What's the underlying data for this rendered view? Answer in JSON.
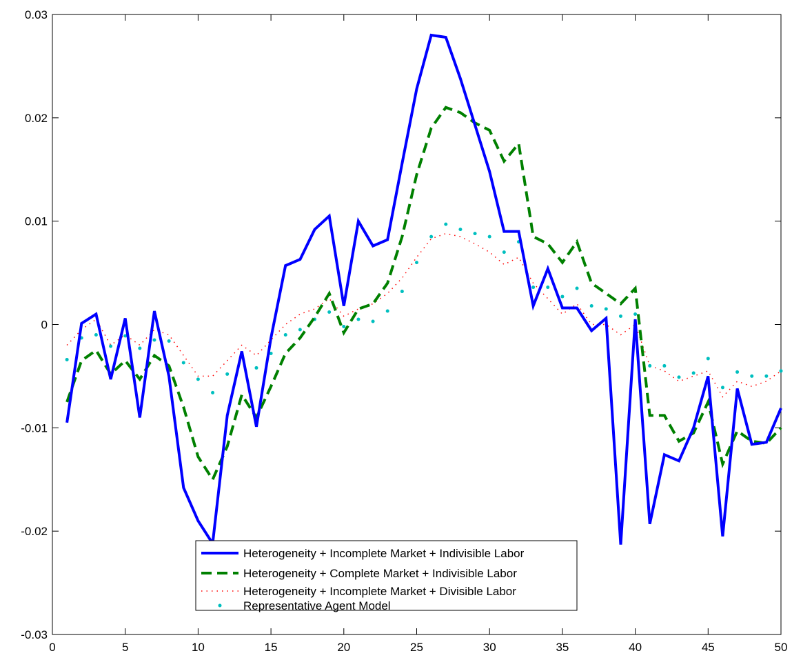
{
  "chart_data": {
    "type": "line",
    "title": "",
    "xlabel": "",
    "ylabel": "",
    "xlim": [
      0,
      50
    ],
    "ylim": [
      -0.03,
      0.03
    ],
    "xticks": [
      0,
      5,
      10,
      15,
      20,
      25,
      30,
      35,
      40,
      45,
      50
    ],
    "xtick_labels": [
      "0",
      "5",
      "10",
      "15",
      "20",
      "25",
      "30",
      "35",
      "40",
      "45",
      "50"
    ],
    "yticks": [
      -0.03,
      -0.02,
      -0.01,
      0,
      0.01,
      0.02,
      0.03
    ],
    "ytick_labels": [
      "-0.03",
      "-0.02",
      "-0.01",
      "0",
      "0.01",
      "0.02",
      "0.03"
    ],
    "grid": false,
    "legend_position": "bottom-center",
    "x": [
      1,
      2,
      3,
      4,
      5,
      6,
      7,
      8,
      9,
      10,
      11,
      12,
      13,
      14,
      15,
      16,
      17,
      18,
      19,
      20,
      21,
      22,
      23,
      24,
      25,
      26,
      27,
      28,
      29,
      30,
      31,
      32,
      33,
      34,
      35,
      36,
      37,
      38,
      39,
      40,
      41,
      42,
      43,
      44,
      45,
      46,
      47,
      48,
      49,
      50
    ],
    "series": [
      {
        "name": "Heterogeneity + Incomplete Market + Indivisible Labor",
        "color": "#0000ff",
        "style": "solid",
        "values": [
          -0.0095,
          0.0001,
          0.001,
          -0.0053,
          0.0006,
          -0.009,
          0.0013,
          -0.005,
          -0.0158,
          -0.019,
          -0.0212,
          -0.0088,
          -0.0026,
          -0.0099,
          -0.0013,
          0.0057,
          0.0063,
          0.0092,
          0.0105,
          0.0018,
          0.01,
          0.0076,
          0.0082,
          0.0156,
          0.0228,
          0.028,
          0.0278,
          0.0238,
          0.0193,
          0.0148,
          0.009,
          0.009,
          0.0018,
          0.0054,
          0.0016,
          0.0016,
          -0.0006,
          0.0006,
          -0.0213,
          0.0005,
          -0.0193,
          -0.0126,
          -0.0132,
          -0.01,
          -0.005,
          -0.0205,
          -0.0062,
          -0.0116,
          -0.0114,
          -0.0081
        ]
      },
      {
        "name": "Heterogeneity + Complete Market + Indivisible Labor",
        "color": "#008000",
        "style": "dashed",
        "values": [
          -0.0075,
          -0.0035,
          -0.0025,
          -0.0048,
          -0.0035,
          -0.0053,
          -0.003,
          -0.004,
          -0.008,
          -0.0128,
          -0.015,
          -0.0118,
          -0.0068,
          -0.009,
          -0.006,
          -0.0028,
          -0.0013,
          0.0007,
          0.003,
          -0.0008,
          0.0015,
          0.002,
          0.004,
          0.0085,
          0.0145,
          0.019,
          0.021,
          0.0205,
          0.0195,
          0.0188,
          0.0158,
          0.0175,
          0.0085,
          0.0078,
          0.006,
          0.008,
          0.004,
          0.003,
          0.002,
          0.0035,
          -0.0088,
          -0.0088,
          -0.0113,
          -0.0105,
          -0.0075,
          -0.0135,
          -0.0103,
          -0.0113,
          -0.0115,
          -0.01
        ]
      },
      {
        "name": "Heterogeneity + Incomplete Market + Divisible Labor",
        "color": "#ff0000",
        "style": "dotted",
        "values": [
          -0.002,
          -0.0005,
          0.0005,
          -0.002,
          -0.001,
          -0.002,
          -0.0005,
          -0.001,
          -0.003,
          -0.005,
          -0.005,
          -0.0035,
          -0.002,
          -0.003,
          -0.0015,
          0.0,
          0.001,
          0.0015,
          0.0025,
          0.0008,
          0.0015,
          0.002,
          0.003,
          0.0045,
          0.0065,
          0.0083,
          0.0088,
          0.0085,
          0.0078,
          0.007,
          0.0058,
          0.0065,
          0.004,
          0.0025,
          0.001,
          0.002,
          0.0,
          0.0,
          -0.001,
          0.0,
          -0.004,
          -0.0045,
          -0.0055,
          -0.005,
          -0.0045,
          -0.007,
          -0.0055,
          -0.006,
          -0.0055,
          -0.0045
        ]
      },
      {
        "name": "Representative Agent Model",
        "color": "#00bfbf",
        "style": "point",
        "values": [
          -0.0034,
          -0.0013,
          -0.001,
          -0.0021,
          -0.0011,
          -0.0023,
          -0.0015,
          -0.0016,
          -0.0037,
          -0.0053,
          -0.0066,
          -0.0048,
          -0.0028,
          -0.0042,
          -0.0028,
          -0.001,
          -0.0005,
          0.0005,
          0.0012,
          -0.0002,
          0.0005,
          0.0003,
          0.0013,
          0.0032,
          0.006,
          0.0085,
          0.0097,
          0.0092,
          0.0088,
          0.0085,
          0.007,
          0.008,
          0.0036,
          0.0036,
          0.0027,
          0.0035,
          0.0018,
          0.0015,
          0.0008,
          0.001,
          -0.004,
          -0.004,
          -0.0051,
          -0.0047,
          -0.0033,
          -0.0061,
          -0.0046,
          -0.005,
          -0.005,
          -0.0045
        ]
      }
    ]
  }
}
